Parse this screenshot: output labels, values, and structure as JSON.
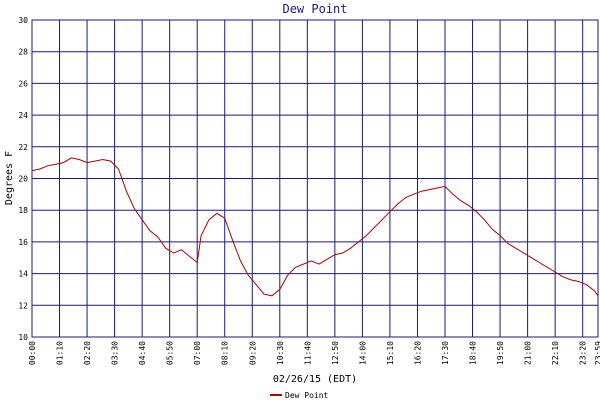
{
  "chart_data": {
    "type": "line",
    "title": "Dew Point",
    "xlabel": "02/26/15 (EDT)",
    "ylabel": "Degrees F",
    "ylim": [
      10,
      30
    ],
    "yticks": [
      10,
      12,
      14,
      16,
      18,
      20,
      22,
      24,
      26,
      28,
      30
    ],
    "x_range": [
      "00:00",
      "23:59"
    ],
    "xtick_labels": [
      "00:00",
      "01:10",
      "02:20",
      "03:30",
      "04:40",
      "05:50",
      "07:00",
      "08:10",
      "09:20",
      "10:30",
      "11:40",
      "12:50",
      "14:00",
      "15:10",
      "16:20",
      "17:30",
      "18:40",
      "19:50",
      "21:00",
      "22:10",
      "23:20",
      "23:59"
    ],
    "grid": true,
    "legend_position": "bottom-center",
    "colors": {
      "series": "#b00000",
      "grid": "#1a1a80",
      "title": "#1a1a80"
    },
    "series": [
      {
        "name": "Dew Point",
        "x": [
          "00:00",
          "00:20",
          "00:40",
          "01:00",
          "01:20",
          "01:40",
          "02:00",
          "02:20",
          "02:40",
          "03:00",
          "03:20",
          "03:40",
          "04:00",
          "04:20",
          "04:40",
          "05:00",
          "05:20",
          "05:40",
          "06:00",
          "06:20",
          "06:40",
          "07:00",
          "07:10",
          "07:30",
          "07:50",
          "08:10",
          "08:30",
          "08:50",
          "09:10",
          "09:30",
          "09:50",
          "10:10",
          "10:30",
          "10:50",
          "11:10",
          "11:30",
          "11:50",
          "12:10",
          "12:30",
          "12:50",
          "13:10",
          "13:30",
          "13:50",
          "14:10",
          "14:30",
          "14:50",
          "15:10",
          "15:30",
          "15:50",
          "16:10",
          "16:30",
          "16:50",
          "17:10",
          "17:30",
          "17:50",
          "18:10",
          "18:30",
          "18:50",
          "19:10",
          "19:30",
          "19:50",
          "20:10",
          "20:30",
          "20:50",
          "21:10",
          "21:30",
          "21:50",
          "22:10",
          "22:30",
          "22:50",
          "23:10",
          "23:30",
          "23:50",
          "23:59"
        ],
        "values": [
          20.5,
          20.6,
          20.8,
          20.9,
          21.0,
          21.3,
          21.2,
          21.0,
          21.1,
          21.2,
          21.1,
          20.6,
          19.2,
          18.1,
          17.4,
          16.7,
          16.3,
          15.6,
          15.3,
          15.5,
          15.1,
          14.7,
          16.4,
          17.4,
          17.8,
          17.5,
          16.1,
          14.8,
          13.9,
          13.3,
          12.7,
          12.6,
          13.0,
          13.9,
          14.4,
          14.6,
          14.8,
          14.6,
          14.9,
          15.2,
          15.3,
          15.6,
          16.0,
          16.4,
          16.9,
          17.4,
          17.9,
          18.4,
          18.8,
          19.0,
          19.2,
          19.3,
          19.4,
          19.5,
          19.0,
          18.6,
          18.3,
          17.9,
          17.4,
          16.8,
          16.4,
          15.9,
          15.6,
          15.3,
          15.0,
          14.7,
          14.4,
          14.1,
          13.8,
          13.6,
          13.5,
          13.3,
          12.9,
          12.6
        ]
      }
    ]
  }
}
